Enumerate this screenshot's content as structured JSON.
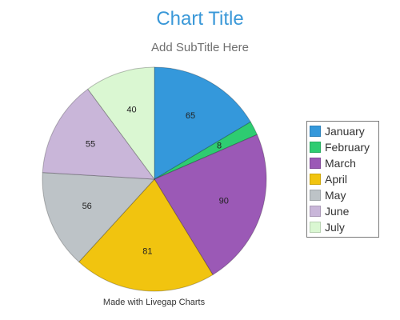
{
  "chart_data": {
    "type": "pie",
    "title": "Chart Title",
    "subtitle": "Add SubTitle Here",
    "footer": "Made with Livegap Charts",
    "legend_position": "right",
    "slices": [
      {
        "label": "January",
        "value": 65,
        "color": "#3498db"
      },
      {
        "label": "February",
        "value": 8,
        "color": "#2ecc71"
      },
      {
        "label": "March",
        "value": 90,
        "color": "#9b59b6"
      },
      {
        "label": "April",
        "value": 81,
        "color": "#f1c40f"
      },
      {
        "label": "May",
        "value": 56,
        "color": "#bdc3c7"
      },
      {
        "label": "June",
        "value": 55,
        "color": "#c9b6d9"
      },
      {
        "label": "July",
        "value": 40,
        "color": "#daf7d2"
      }
    ]
  }
}
